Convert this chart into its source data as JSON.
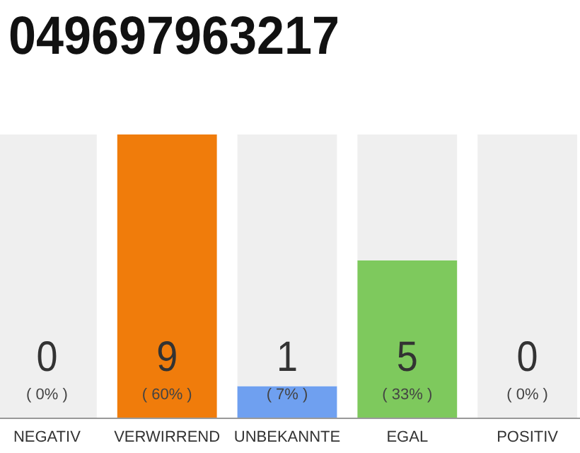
{
  "chart_data": {
    "type": "bar",
    "title": "049697963217",
    "categories": [
      "NEGATIV",
      "VERWIRREND",
      "UNBEKANNTE",
      "EGAL",
      "POSITIV"
    ],
    "stacked": true,
    "ylim": [
      0,
      9
    ],
    "tick_labels": "x",
    "series": [
      {
        "colors": [
          "#f07c0b",
          "#f07c0b",
          "#6fa0f0",
          "#7ec95d",
          "#7ec95d"
        ],
        "values": [
          0,
          9,
          1,
          5,
          0
        ],
        "value_labels": [
          null,
          "9",
          "1",
          "5",
          null
        ]
      },
      {
        "color": "#efefef",
        "values": [
          9,
          0,
          8,
          4,
          9
        ]
      }
    ],
    "annotations": [
      "0",
      "( 0% )",
      "( 60% )",
      "( 7% )",
      "( 33% )",
      "0",
      "( 0% )"
    ]
  }
}
